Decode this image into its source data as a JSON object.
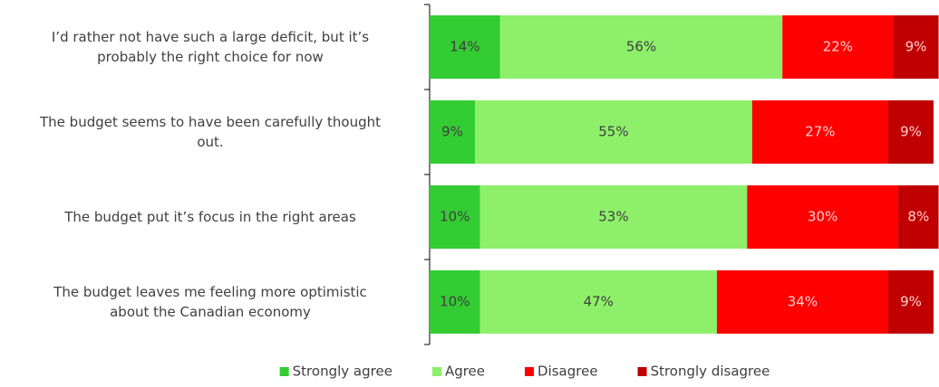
{
  "chart_data": {
    "type": "stacked_bar_horizontal",
    "categories": [
      [
        "I’d rather not have such a large deficit, but it’s",
        "probably the right choice for now"
      ],
      [
        "The budget seems to have been carefully thought",
        "out."
      ],
      [
        "The budget put it’s focus in the right areas"
      ],
      [
        "The budget leaves me feeling more optimistic",
        "about the Canadian economy"
      ]
    ],
    "xlim": [
      0,
      100
    ],
    "legend": "bottom",
    "series": [
      {
        "name": "Strongly agree",
        "color": "#33cc33",
        "label_color": "#404040",
        "values": [
          14,
          9,
          10,
          10
        ],
        "value_labels": [
          "14%",
          "9%",
          "10%",
          "10%"
        ]
      },
      {
        "name": "Agree",
        "color": "#8ef06a",
        "label_color": "#404040",
        "values": [
          56,
          55,
          53,
          47
        ],
        "value_labels": [
          "56%",
          "55%",
          "53%",
          "47%"
        ]
      },
      {
        "name": "Disagree",
        "color": "#ff0000",
        "label_color": "#ffd0d0",
        "values": [
          22,
          27,
          30,
          34
        ],
        "value_labels": [
          "22%",
          "27%",
          "30%",
          "34%"
        ]
      },
      {
        "name": "Strongly disagree",
        "color": "#c00000",
        "label_color": "#ffd0d0",
        "values": [
          9,
          9,
          8,
          9
        ],
        "value_labels": [
          "9%",
          "9%",
          "8%",
          "9%"
        ]
      }
    ]
  }
}
